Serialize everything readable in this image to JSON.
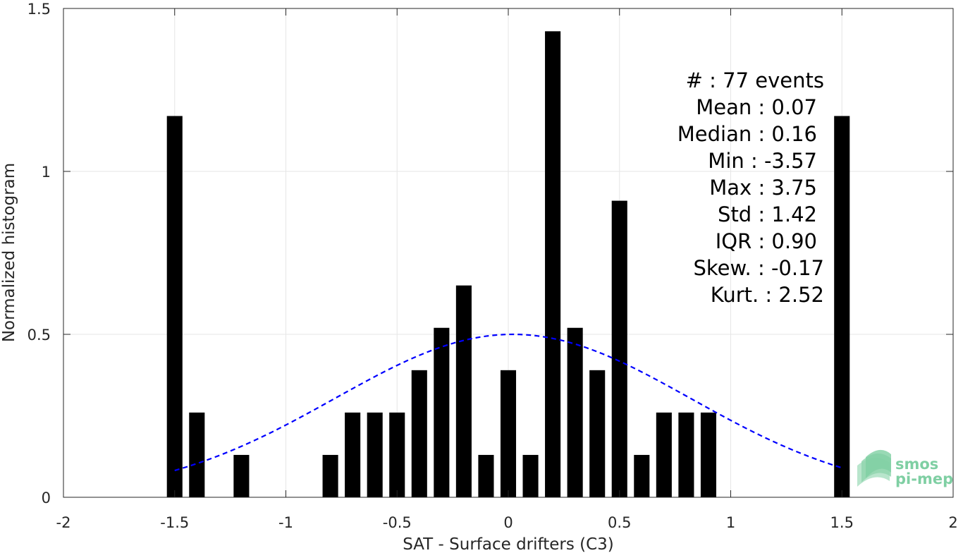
{
  "chart_data": {
    "type": "bar",
    "xlabel": "SAT - Surface drifters (C3)",
    "ylabel": "Normalized histogram",
    "xlim": [
      -2,
      2
    ],
    "ylim": [
      0,
      1.5
    ],
    "x_ticks": [
      -2,
      -1.5,
      -1,
      -0.5,
      0,
      0.5,
      1,
      1.5,
      2
    ],
    "x_tick_labels": [
      "-2",
      "-1.5",
      "-1",
      "-0.5",
      "0",
      "0.5",
      "1",
      "1.5",
      "2"
    ],
    "y_ticks": [
      0,
      0.5,
      1,
      1.5
    ],
    "y_tick_labels": [
      "0",
      "0.5",
      "1",
      "1.5"
    ],
    "grid": true,
    "bar_width": 0.07,
    "bars": {
      "x": [
        -1.5,
        -1.4,
        -1.2,
        -0.8,
        -0.7,
        -0.6,
        -0.5,
        -0.4,
        -0.3,
        -0.2,
        -0.1,
        0.0,
        0.1,
        0.2,
        0.3,
        0.4,
        0.5,
        0.6,
        0.7,
        0.8,
        0.9,
        1.5
      ],
      "values": [
        1.17,
        0.26,
        0.13,
        0.13,
        0.26,
        0.26,
        0.26,
        0.39,
        0.52,
        0.65,
        0.13,
        0.39,
        0.13,
        1.43,
        0.52,
        0.39,
        0.91,
        0.13,
        0.26,
        0.26,
        0.26,
        1.17
      ],
      "color": "#000000"
    },
    "fit_curve": {
      "style": "dashed",
      "color": "#0000ff",
      "mean": 0.02,
      "std": 0.8,
      "peak": 0.5,
      "x_range": [
        -1.5,
        1.5
      ]
    },
    "stats": [
      "#  : 77 events",
      "Mean : 0.07",
      "Median : 0.16",
      "Min : -3.57",
      "Max : 3.75",
      "Std : 1.42",
      "IQR : 0.90",
      "Skew. : -0.17",
      "Kurt. : 2.52"
    ]
  },
  "logo": {
    "line1": "smos",
    "line2": "pi-mep",
    "color": "#7fcfa3"
  }
}
